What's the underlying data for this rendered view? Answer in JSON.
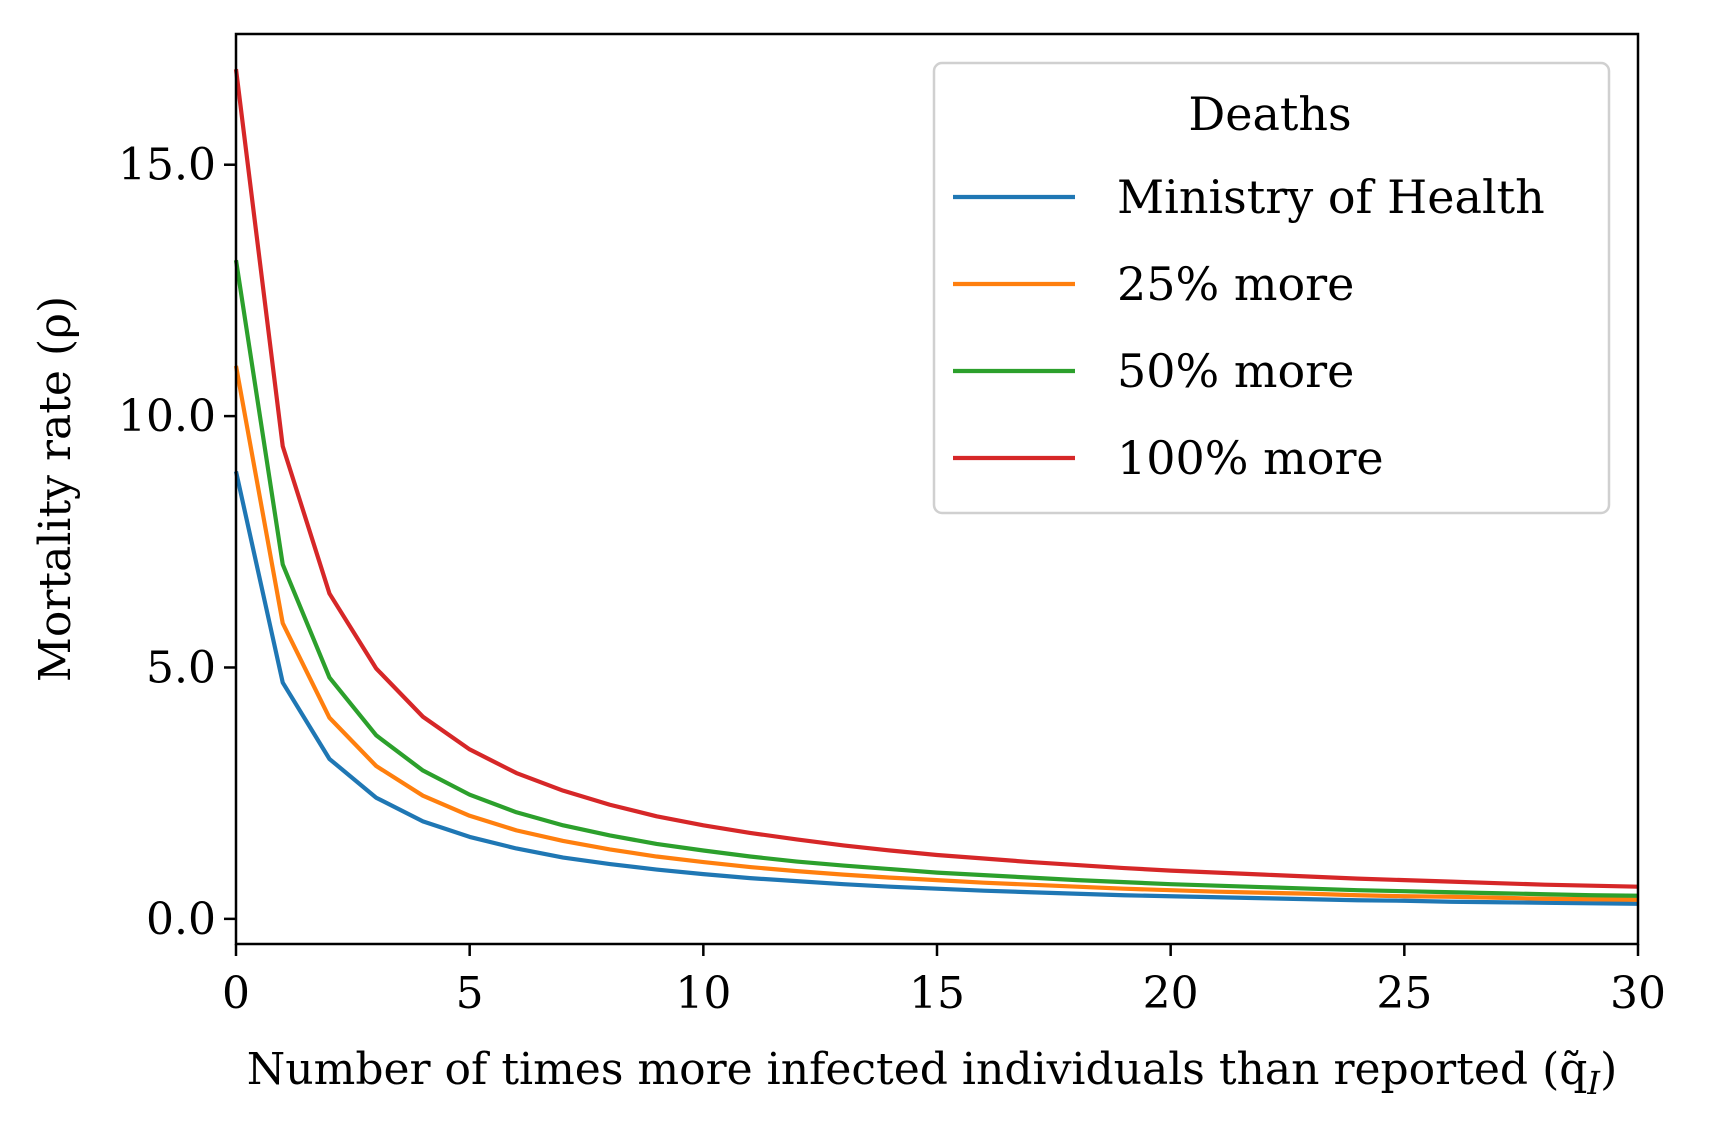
{
  "chart_data": {
    "type": "line",
    "title": "",
    "xlabel": "Number of times more infected individuals than reported (q̃",
    "xlabel_sub": "I",
    "xlabel_close": ")",
    "ylabel": "Mortality rate (ρ)",
    "xlim": [
      0,
      30
    ],
    "ylim": [
      -0.5,
      17.6
    ],
    "xticks": [
      0,
      5,
      10,
      15,
      20,
      25,
      30
    ],
    "xtick_labels": [
      "0",
      "5",
      "10",
      "15",
      "20",
      "25",
      "30"
    ],
    "yticks": [
      0,
      5,
      10,
      15
    ],
    "ytick_labels": [
      "0.0",
      "5.0",
      "10.0",
      "15.0"
    ],
    "grid": false,
    "legend": {
      "title": "Deaths",
      "placement": "top-right"
    },
    "x": [
      0,
      1,
      2,
      3,
      4,
      5,
      6,
      7,
      8,
      9,
      10,
      11,
      12,
      13,
      14,
      15,
      16,
      17,
      18,
      19,
      20,
      21,
      22,
      23,
      24,
      25,
      26,
      27,
      28,
      29,
      30
    ],
    "series": [
      {
        "name": "Ministry of Health",
        "color": "#1f77b4",
        "values": [
          8.9,
          4.7,
          3.18,
          2.41,
          1.94,
          1.63,
          1.4,
          1.22,
          1.09,
          0.98,
          0.89,
          0.81,
          0.75,
          0.69,
          0.64,
          0.6,
          0.56,
          0.53,
          0.5,
          0.47,
          0.45,
          0.43,
          0.41,
          0.39,
          0.37,
          0.36,
          0.34,
          0.33,
          0.32,
          0.31,
          0.3
        ]
      },
      {
        "name": "25% more",
        "color": "#ff7f0e",
        "values": [
          11.0,
          5.88,
          4.0,
          3.04,
          2.45,
          2.05,
          1.76,
          1.55,
          1.38,
          1.24,
          1.13,
          1.03,
          0.95,
          0.88,
          0.82,
          0.77,
          0.72,
          0.68,
          0.64,
          0.6,
          0.57,
          0.54,
          0.52,
          0.5,
          0.47,
          0.45,
          0.44,
          0.42,
          0.4,
          0.39,
          0.38
        ]
      },
      {
        "name": "50% more",
        "color": "#2ca02c",
        "values": [
          13.1,
          7.05,
          4.8,
          3.65,
          2.95,
          2.47,
          2.12,
          1.86,
          1.66,
          1.49,
          1.36,
          1.24,
          1.14,
          1.06,
          0.99,
          0.92,
          0.87,
          0.82,
          0.77,
          0.73,
          0.69,
          0.66,
          0.63,
          0.6,
          0.57,
          0.55,
          0.53,
          0.51,
          0.49,
          0.47,
          0.46
        ]
      },
      {
        "name": "100% more",
        "color": "#d62728",
        "values": [
          16.9,
          9.4,
          6.47,
          4.98,
          4.02,
          3.37,
          2.9,
          2.55,
          2.27,
          2.04,
          1.86,
          1.71,
          1.58,
          1.46,
          1.36,
          1.27,
          1.2,
          1.13,
          1.07,
          1.01,
          0.96,
          0.92,
          0.88,
          0.84,
          0.8,
          0.77,
          0.74,
          0.71,
          0.68,
          0.66,
          0.64
        ]
      }
    ]
  }
}
